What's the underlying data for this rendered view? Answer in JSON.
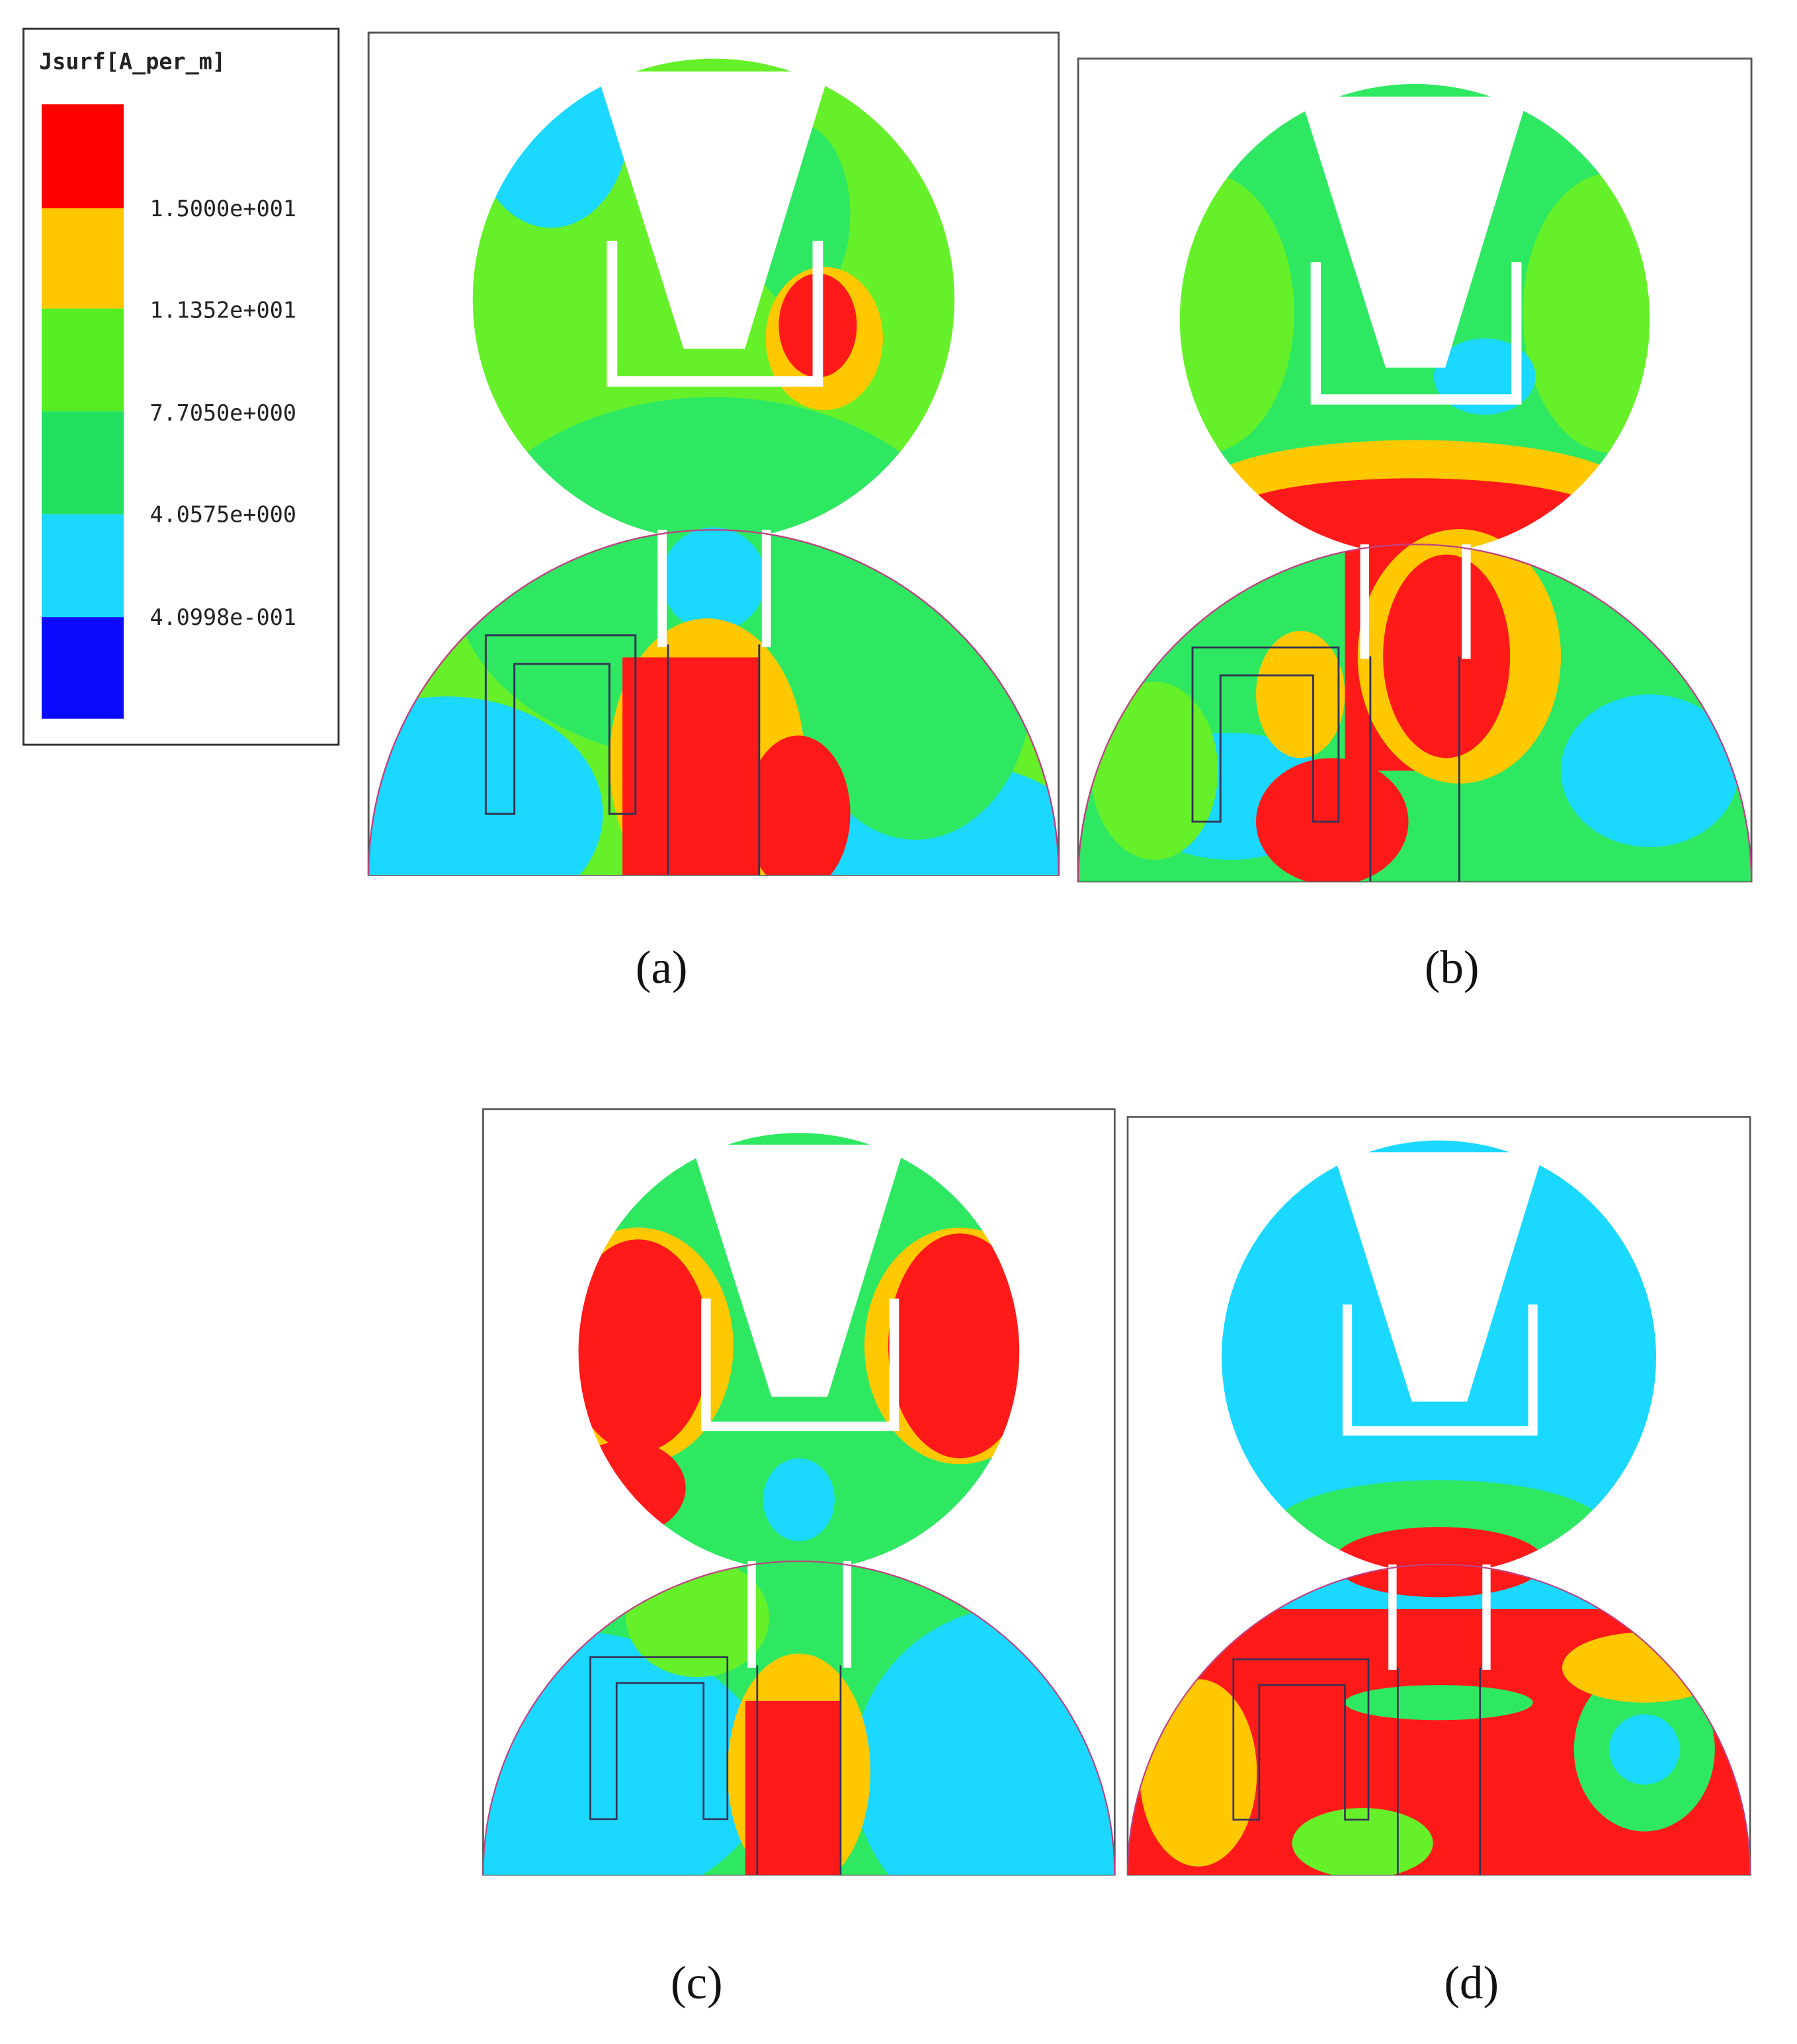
{
  "legend": {
    "title": "Jsurf[A_per_m]",
    "labels": [
      "1.5000e+001",
      "1.1352e+001",
      "7.7050e+000",
      "4.0575e+000",
      "4.0998e-001"
    ]
  },
  "panels": [
    {
      "label": "(a)"
    },
    {
      "label": "(b)"
    },
    {
      "label": "(c)"
    },
    {
      "label": "(d)"
    }
  ]
}
